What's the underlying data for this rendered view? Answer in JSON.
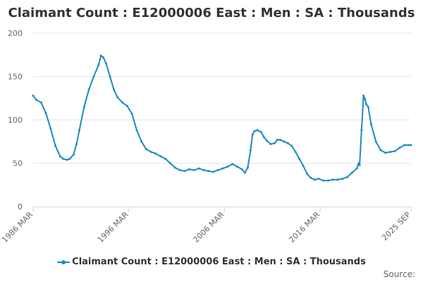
{
  "chart_data": {
    "type": "line",
    "title": "Claimant Count : E12000006 East : Men : SA : Thousands",
    "series_color": "#1f8bbf",
    "grid": true,
    "legend_position": "bottom",
    "ylim": [
      0,
      200
    ],
    "yticks": [
      "0",
      "50",
      "100",
      "150",
      "200"
    ],
    "xlim": [
      1986.17,
      2025.67
    ],
    "xticks": [
      {
        "value": 1986.17,
        "label": "1986 MAR"
      },
      {
        "value": 1996.17,
        "label": "1996 MAR"
      },
      {
        "value": 2006.17,
        "label": "2006 MAR"
      },
      {
        "value": 2016.17,
        "label": "2016 MAR"
      },
      {
        "value": 2025.67,
        "label": "2025 SEP"
      }
    ],
    "series": [
      {
        "name": "Claimant Count : E12000006 East : Men : SA : Thousands",
        "x": [
          1986.17,
          1986.5,
          1987.0,
          1987.5,
          1988.0,
          1988.5,
          1989.0,
          1989.3,
          1989.7,
          1990.0,
          1990.4,
          1990.7,
          1991.0,
          1991.5,
          1992.0,
          1992.5,
          1993.0,
          1993.25,
          1993.5,
          1993.8,
          1994.2,
          1994.6,
          1995.0,
          1995.5,
          1996.0,
          1996.5,
          1997.0,
          1997.5,
          1998.0,
          1998.5,
          1999.0,
          1999.5,
          2000.0,
          2000.5,
          2001.0,
          2001.5,
          2002.0,
          2002.5,
          2003.0,
          2003.5,
          2004.0,
          2004.5,
          2005.0,
          2005.5,
          2006.0,
          2006.5,
          2007.0,
          2007.5,
          2008.0,
          2008.3,
          2008.6,
          2008.9,
          2009.1,
          2009.3,
          2009.6,
          2010.0,
          2010.3,
          2010.6,
          2011.0,
          2011.4,
          2011.7,
          2012.0,
          2012.4,
          2012.8,
          2013.2,
          2013.6,
          2014.0,
          2014.4,
          2014.8,
          2015.2,
          2015.6,
          2016.0,
          2016.5,
          2017.0,
          2017.5,
          2018.0,
          2018.5,
          2019.0,
          2019.5,
          2020.0,
          2020.15,
          2020.2,
          2020.3,
          2020.5,
          2020.7,
          2020.85,
          2021.0,
          2021.2,
          2021.5,
          2022.0,
          2022.5,
          2023.0,
          2023.5,
          2024.0,
          2024.5,
          2025.0,
          2025.4,
          2025.67
        ],
        "values": [
          128,
          123,
          120,
          108,
          90,
          70,
          58,
          55,
          54,
          55,
          60,
          72,
          88,
          115,
          135,
          150,
          163,
          174,
          172,
          165,
          150,
          135,
          126,
          120,
          116,
          107,
          88,
          75,
          66,
          63,
          61,
          58,
          55,
          50,
          45,
          42,
          41,
          43,
          42,
          44,
          42,
          41,
          40,
          42,
          44,
          46,
          49,
          46,
          43,
          39,
          45,
          65,
          83,
          87,
          88,
          86,
          80,
          76,
          72,
          73,
          77,
          77,
          75,
          73,
          70,
          63,
          55,
          47,
          38,
          33,
          31,
          32,
          30,
          30,
          31,
          31,
          32,
          34,
          39,
          44,
          48,
          50,
          48,
          88,
          128,
          124,
          118,
          115,
          95,
          75,
          65,
          62,
          63,
          64,
          68,
          71,
          71,
          71
        ]
      }
    ]
  },
  "legend": {
    "label": "Claimant Count : E12000006 East : Men : SA : Thousands"
  },
  "source": {
    "label": "Source:"
  }
}
